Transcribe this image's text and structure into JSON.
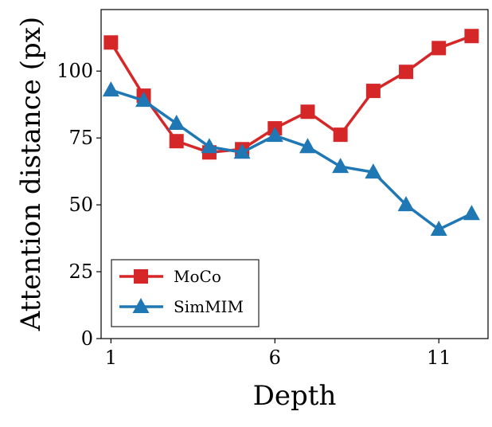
{
  "chart_data": {
    "type": "line",
    "title": "",
    "xlabel": "Depth",
    "ylabel": "Attention distance (px)",
    "x": [
      1,
      2,
      3,
      4,
      5,
      6,
      7,
      8,
      9,
      10,
      11,
      12
    ],
    "xticks": [
      1,
      6,
      11
    ],
    "yticks": [
      0,
      25,
      50,
      75,
      100
    ],
    "xlim": [
      0.7,
      12.5
    ],
    "ylim": [
      0,
      123
    ],
    "grid": false,
    "legend_placement": "lower-left",
    "series": [
      {
        "name": "MoCo",
        "color": "#d62728",
        "marker": "square",
        "values": [
          110.7,
          90.8,
          73.8,
          69.6,
          70.8,
          78.6,
          84.8,
          76.2,
          92.6,
          99.7,
          108.6,
          113.1
        ]
      },
      {
        "name": "SimMIM",
        "color": "#1f77b4",
        "marker": "triangle",
        "values": [
          92.9,
          89.0,
          80.4,
          71.7,
          69.6,
          75.9,
          71.7,
          64.3,
          62.2,
          50.0,
          40.8,
          46.7
        ]
      }
    ]
  }
}
